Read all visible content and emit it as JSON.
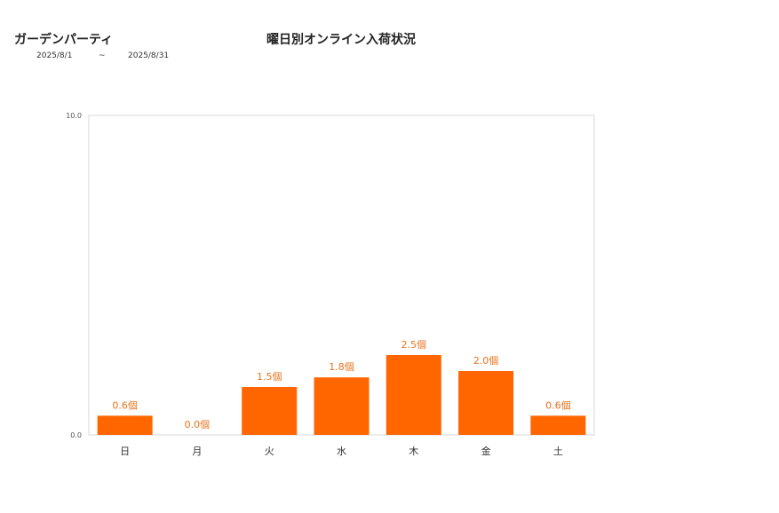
{
  "header": {
    "shop_name": "ガーデンパーティ",
    "date_start": "2025/8/1",
    "date_sep": "~",
    "date_end": "2025/8/31"
  },
  "chart_data": {
    "type": "bar",
    "title": "曜日別オンライン入荷状況",
    "categories": [
      "日",
      "月",
      "火",
      "水",
      "木",
      "金",
      "土"
    ],
    "values": [
      0.6,
      0.0,
      1.5,
      1.8,
      2.5,
      2.0,
      0.6
    ],
    "data_labels": [
      "0.6個",
      "0.0個",
      "1.5個",
      "1.8個",
      "2.5個",
      "2.0個",
      "0.6個"
    ],
    "y_ticks": [
      "10.0",
      "0.0"
    ],
    "ylim": [
      0,
      10
    ],
    "grid": false,
    "legend": "none",
    "bar_color": "#ff6600",
    "label_color": "#e8721c"
  }
}
